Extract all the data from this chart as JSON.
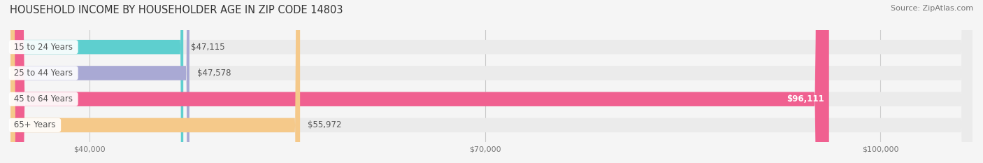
{
  "title": "HOUSEHOLD INCOME BY HOUSEHOLDER AGE IN ZIP CODE 14803",
  "source": "Source: ZipAtlas.com",
  "categories": [
    "15 to 24 Years",
    "25 to 44 Years",
    "45 to 64 Years",
    "65+ Years"
  ],
  "values": [
    47115,
    47578,
    96111,
    55972
  ],
  "bar_colors": [
    "#5ecfcf",
    "#a9a9d4",
    "#f06090",
    "#f5c98a"
  ],
  "bg_bar_color": "#ebebeb",
  "xmin": 34000,
  "xmax": 107000,
  "xticks": [
    40000,
    70000,
    100000
  ],
  "xtick_labels": [
    "$40,000",
    "$70,000",
    "$100,000"
  ],
  "value_labels": [
    "$47,115",
    "$47,578",
    "$96,111",
    "$55,972"
  ],
  "label_bg_color": "#ffffff",
  "bar_height": 0.55,
  "fig_width": 14.06,
  "fig_height": 2.33,
  "title_fontsize": 10.5,
  "label_fontsize": 8.5,
  "value_fontsize": 8.5,
  "tick_fontsize": 8.0,
  "source_fontsize": 8.0,
  "grid_color": "#cccccc"
}
